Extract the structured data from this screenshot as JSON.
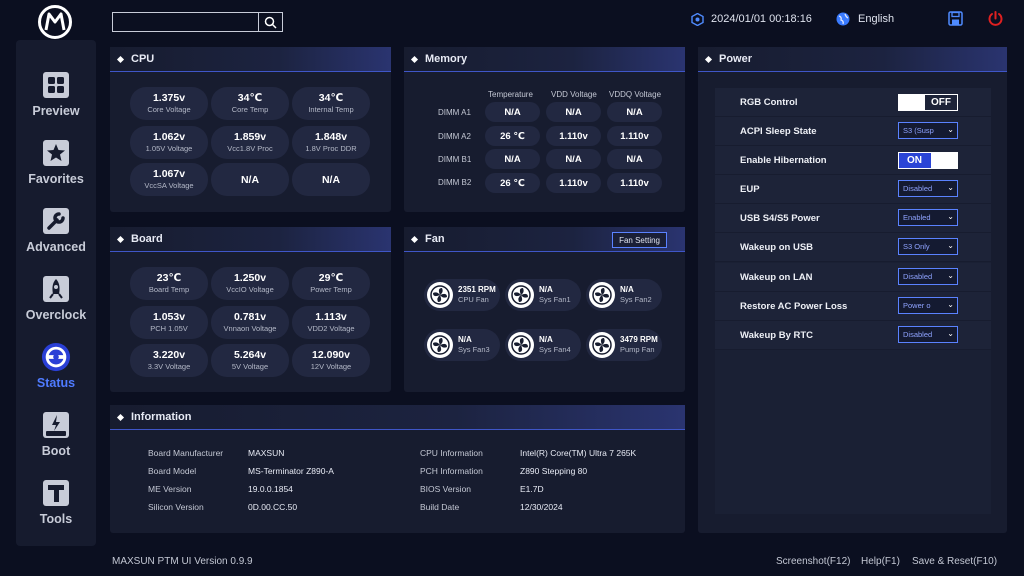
{
  "nav": {
    "items": [
      {
        "label": "Preview"
      },
      {
        "label": "Favorites"
      },
      {
        "label": "Advanced"
      },
      {
        "label": "Overclock"
      },
      {
        "label": "Status"
      },
      {
        "label": "Boot"
      },
      {
        "label": "Tools"
      }
    ],
    "active": "Status"
  },
  "topbar": {
    "search_value": "",
    "datetime": "2024/01/01 00:18:16",
    "language": "English"
  },
  "cpu": {
    "title": "CPU",
    "readings": [
      {
        "value": "1.375v",
        "label": "Core Voltage"
      },
      {
        "value": "34℃",
        "label": "Core Temp"
      },
      {
        "value": "34℃",
        "label": "Internal Temp"
      },
      {
        "value": "1.062v",
        "label": "1.05V Voltage"
      },
      {
        "value": "1.859v",
        "label": "Vcc1.8V Proc"
      },
      {
        "value": "1.848v",
        "label": "1.8V Proc DDR"
      },
      {
        "value": "1.067v",
        "label": "VccSA Voltage"
      },
      {
        "value": "N/A",
        "label": ""
      },
      {
        "value": "N/A",
        "label": ""
      }
    ]
  },
  "memory": {
    "title": "Memory",
    "columns": [
      "Temperature",
      "VDD Voltage",
      "VDDQ Voltage"
    ],
    "rows": [
      {
        "label": "DIMM A1",
        "cells": [
          "N/A",
          "N/A",
          "N/A"
        ]
      },
      {
        "label": "DIMM A2",
        "cells": [
          "26 ℃",
          "1.110v",
          "1.110v"
        ]
      },
      {
        "label": "DIMM B1",
        "cells": [
          "N/A",
          "N/A",
          "N/A"
        ]
      },
      {
        "label": "DIMM B2",
        "cells": [
          "26 ℃",
          "1.110v",
          "1.110v"
        ]
      }
    ]
  },
  "board": {
    "title": "Board",
    "readings": [
      {
        "value": "23℃",
        "label": "Board Temp"
      },
      {
        "value": "1.250v",
        "label": "VccIO Voltage"
      },
      {
        "value": "29℃",
        "label": "Power Temp"
      },
      {
        "value": "1.053v",
        "label": "PCH 1.05V"
      },
      {
        "value": "0.781v",
        "label": "Vnnaon Voltage"
      },
      {
        "value": "1.113v",
        "label": "VDD2 Voltage"
      },
      {
        "value": "3.220v",
        "label": "3.3V Voltage"
      },
      {
        "value": "5.264v",
        "label": "5V Voltage"
      },
      {
        "value": "12.090v",
        "label": "12V Voltage"
      }
    ]
  },
  "fan": {
    "title": "Fan",
    "setting_button": "Fan Setting",
    "fans": [
      {
        "value": "2351 RPM",
        "label": "CPU Fan"
      },
      {
        "value": "N/A",
        "label": "Sys Fan1"
      },
      {
        "value": "N/A",
        "label": "Sys Fan2"
      },
      {
        "value": "N/A",
        "label": "Sys Fan3"
      },
      {
        "value": "N/A",
        "label": "Sys Fan4"
      },
      {
        "value": "3479 RPM",
        "label": "Pump Fan"
      }
    ]
  },
  "information": {
    "title": "Information",
    "left": [
      {
        "label": "Board Manufacturer",
        "value": "MAXSUN"
      },
      {
        "label": "Board Model",
        "value": "MS-Terminator Z890-A"
      },
      {
        "label": "ME Version",
        "value": "19.0.0.1854"
      },
      {
        "label": "Silicon Version",
        "value": "0D.00.CC.50"
      }
    ],
    "right": [
      {
        "label": "CPU Information",
        "value": "Intel(R) Core(TM) Ultra 7 265K"
      },
      {
        "label": "PCH Information",
        "value": "Z890 Stepping 80"
      },
      {
        "label": "BIOS Version",
        "value": "E1.7D"
      },
      {
        "label": "Build Date",
        "value": "12/30/2024"
      }
    ]
  },
  "power": {
    "title": "Power",
    "rows": [
      {
        "label": "RGB Control",
        "kind": "toggle",
        "value": "OFF"
      },
      {
        "label": "ACPI Sleep State",
        "kind": "select",
        "value": "S3 (Susp"
      },
      {
        "label": "Enable Hibernation",
        "kind": "toggle",
        "value": "ON"
      },
      {
        "label": "EUP",
        "kind": "select",
        "value": "Disabled"
      },
      {
        "label": "USB S4/S5 Power",
        "kind": "select",
        "value": "Enabled"
      },
      {
        "label": "Wakeup on USB",
        "kind": "select",
        "value": "S3 Only"
      },
      {
        "label": "Wakeup on LAN",
        "kind": "select",
        "value": "Disabled"
      },
      {
        "label": "Restore AC Power Loss",
        "kind": "select",
        "value": "Power o"
      },
      {
        "label": "Wakeup By RTC",
        "kind": "select",
        "value": "Disabled"
      }
    ]
  },
  "footer": {
    "version": "MAXSUN PTM UI Version 0.9.9",
    "screenshot": "Screenshot(F12)",
    "help": "Help(F1)",
    "save_reset": "Save & Reset(F10)"
  },
  "colors": {
    "accent": "#4f7bff",
    "power_icon": "#e02020",
    "panel": "#171c2f",
    "background": "#0b0f20"
  }
}
